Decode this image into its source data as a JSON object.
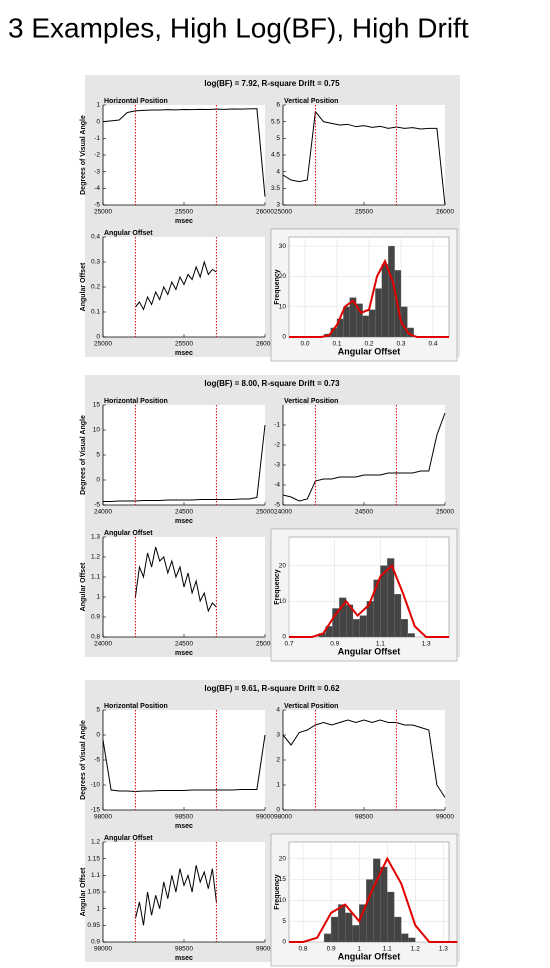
{
  "title": "3 Examples, High Log(BF), High Drift",
  "panels": [
    {
      "title": "log(BF) = 7.92, R-square Drift = 0.75",
      "chart_data": [
        {
          "type": "line",
          "title": "Horizontal Position",
          "ylabel": "Degrees of Visual Angle",
          "xlabel": "msec",
          "color": "#000000",
          "xlim": [
            25000,
            26000
          ],
          "xticks": [
            25000,
            25500,
            26000
          ],
          "ylim": [
            -5,
            1
          ],
          "yticks": [
            -5,
            -4,
            -3,
            -2,
            -1,
            0,
            1
          ],
          "markers": [
            25200,
            25700
          ],
          "marker_color": "#e00000",
          "x": [
            25000,
            25050,
            25100,
            25150,
            25200,
            25250,
            25300,
            25350,
            25400,
            25450,
            25500,
            25550,
            25600,
            25650,
            25700,
            25750,
            25800,
            25850,
            25900,
            25950,
            26000
          ],
          "values": [
            0.0,
            0.05,
            0.1,
            0.55,
            0.65,
            0.68,
            0.7,
            0.7,
            0.72,
            0.71,
            0.73,
            0.72,
            0.74,
            0.73,
            0.75,
            0.74,
            0.76,
            0.75,
            0.77,
            0.78,
            -4.5
          ]
        },
        {
          "type": "line",
          "title": "Vertical Position",
          "color": "#000000",
          "xlim": [
            25000,
            26000
          ],
          "xticks": [
            25000,
            25500,
            26000
          ],
          "ylim": [
            3,
            6
          ],
          "yticks": [
            3,
            3.5,
            4,
            4.5,
            5,
            5.5,
            6
          ],
          "markers": [
            25200,
            25700
          ],
          "marker_color": "#e00000",
          "x": [
            25000,
            25050,
            25100,
            25150,
            25200,
            25250,
            25300,
            25350,
            25400,
            25450,
            25500,
            25550,
            25600,
            25650,
            25700,
            25750,
            25800,
            25850,
            25900,
            25950,
            26000
          ],
          "values": [
            3.9,
            3.75,
            3.7,
            3.75,
            5.8,
            5.5,
            5.45,
            5.4,
            5.42,
            5.35,
            5.38,
            5.33,
            5.36,
            5.3,
            5.34,
            5.3,
            5.32,
            5.28,
            5.3,
            5.3,
            3.0
          ]
        },
        {
          "type": "line",
          "title": "Angular Offset",
          "ylabel": "Angular Offset",
          "xlabel": "msec",
          "color": "#000000",
          "xlim": [
            25000,
            26000
          ],
          "xticks": [
            25000,
            25500,
            26000
          ],
          "ylim": [
            0,
            0.4
          ],
          "yticks": [
            0,
            0.1,
            0.2,
            0.3,
            0.4
          ],
          "markers": [
            25200,
            25700
          ],
          "marker_color": "#e00000",
          "x": [
            25200,
            25225,
            25250,
            25275,
            25300,
            25325,
            25350,
            25375,
            25400,
            25425,
            25450,
            25475,
            25500,
            25525,
            25550,
            25575,
            25600,
            25625,
            25650,
            25675,
            25700
          ],
          "values": [
            0.12,
            0.14,
            0.11,
            0.16,
            0.13,
            0.18,
            0.15,
            0.2,
            0.17,
            0.22,
            0.19,
            0.24,
            0.21,
            0.25,
            0.23,
            0.28,
            0.24,
            0.3,
            0.25,
            0.27,
            0.26
          ]
        },
        {
          "type": "histogram",
          "ylabel": "Frequency",
          "xlabel": "Angular Offset",
          "color": "#444444",
          "fit_color": "#e00000",
          "xlim": [
            -0.05,
            0.45
          ],
          "xticks": [
            {
              "value": 0,
              "label": "0.0"
            },
            0.1,
            0.2,
            0.3,
            0.4
          ],
          "ylim": [
            0,
            33
          ],
          "yticks": [
            0,
            10,
            20,
            30
          ],
          "bins": [
            0.06,
            0.08,
            0.1,
            0.12,
            0.14,
            0.16,
            0.18,
            0.2,
            0.22,
            0.24,
            0.26,
            0.28,
            0.3,
            0.32,
            0.34
          ],
          "counts": [
            1,
            3,
            6,
            10,
            13,
            11,
            7,
            9,
            16,
            24,
            30,
            22,
            10,
            3
          ],
          "fit_x": [
            -0.05,
            -0.025,
            0,
            0.025,
            0.05,
            0.075,
            0.1,
            0.125,
            0.15,
            0.175,
            0.2,
            0.225,
            0.25,
            0.275,
            0.3,
            0.325,
            0.35,
            0.375,
            0.4,
            0.425,
            0.45
          ],
          "fit_values": [
            0,
            0,
            0,
            0,
            0,
            0.5,
            4,
            10,
            12,
            8,
            9,
            20,
            25,
            18,
            5,
            1,
            0,
            0,
            0,
            0,
            0
          ]
        }
      ]
    },
    {
      "title": "log(BF) = 8.00, R-square Drift = 0.73",
      "chart_data": [
        {
          "type": "line",
          "title": "Horizontal Position",
          "ylabel": "Degrees of Visual Angle",
          "xlabel": "msec",
          "color": "#000000",
          "xlim": [
            24000,
            25000
          ],
          "xticks": [
            24000,
            24500,
            25000
          ],
          "ylim": [
            -5,
            15
          ],
          "yticks": [
            -5,
            0,
            5,
            10,
            15
          ],
          "markers": [
            24200,
            24700
          ],
          "marker_color": "#e00000",
          "x": [
            24000,
            24050,
            24100,
            24150,
            24200,
            24250,
            24300,
            24350,
            24400,
            24450,
            24500,
            24550,
            24600,
            24650,
            24700,
            24750,
            24800,
            24850,
            24900,
            24950,
            25000
          ],
          "values": [
            -4.3,
            -4.3,
            -4.2,
            -4.2,
            -4.2,
            -4.1,
            -4.1,
            -4.1,
            -4.0,
            -4.0,
            -4.0,
            -4.0,
            -3.9,
            -3.9,
            -3.9,
            -3.9,
            -3.9,
            -3.8,
            -3.8,
            -3.5,
            11
          ]
        },
        {
          "type": "line",
          "title": "Vertical Position",
          "color": "#000000",
          "xlim": [
            24000,
            25000
          ],
          "xticks": [
            24000,
            24500,
            25000
          ],
          "ylim": [
            -5,
            0
          ],
          "yticks": [
            -5,
            -4,
            -3,
            -2,
            -1
          ],
          "markers": [
            24200,
            24700
          ],
          "marker_color": "#e00000",
          "x": [
            24000,
            24050,
            24100,
            24150,
            24200,
            24250,
            24300,
            24350,
            24400,
            24450,
            24500,
            24550,
            24600,
            24650,
            24700,
            24750,
            24800,
            24850,
            24900,
            24950,
            25000
          ],
          "values": [
            -4.5,
            -4.6,
            -4.8,
            -4.7,
            -3.8,
            -3.7,
            -3.7,
            -3.6,
            -3.6,
            -3.6,
            -3.5,
            -3.5,
            -3.5,
            -3.4,
            -3.4,
            -3.4,
            -3.4,
            -3.3,
            -3.3,
            -1.5,
            -0.4
          ]
        },
        {
          "type": "line",
          "title": "Angular Offset",
          "ylabel": "Angular Offset",
          "xlabel": "msec",
          "color": "#000000",
          "xlim": [
            24000,
            25000
          ],
          "xticks": [
            24000,
            24500,
            25000
          ],
          "ylim": [
            0.8,
            1.3
          ],
          "yticks": [
            0.8,
            0.9,
            1,
            1.1,
            1.2,
            1.3
          ],
          "markers": [
            24200,
            24700
          ],
          "marker_color": "#e00000",
          "x": [
            24200,
            24225,
            24250,
            24275,
            24300,
            24325,
            24350,
            24375,
            24400,
            24425,
            24450,
            24475,
            24500,
            24525,
            24550,
            24575,
            24600,
            24625,
            24650,
            24675,
            24700
          ],
          "values": [
            1.0,
            1.15,
            1.1,
            1.22,
            1.15,
            1.25,
            1.18,
            1.2,
            1.12,
            1.18,
            1.1,
            1.15,
            1.05,
            1.12,
            1.02,
            1.08,
            0.98,
            1.02,
            0.93,
            0.97,
            0.95
          ]
        },
        {
          "type": "histogram",
          "ylabel": "Frequency",
          "xlabel": "Angular Offset",
          "color": "#444444",
          "fit_color": "#e00000",
          "xlim": [
            0.7,
            1.4
          ],
          "xticks": [
            0.7,
            0.9,
            1.1,
            1.3
          ],
          "ylim": [
            0,
            28
          ],
          "yticks": [
            0,
            10,
            20
          ],
          "bins": [
            0.83,
            0.86,
            0.89,
            0.92,
            0.95,
            0.98,
            1.01,
            1.04,
            1.07,
            1.1,
            1.13,
            1.16,
            1.19,
            1.22,
            1.25
          ],
          "counts": [
            1,
            3,
            8,
            11,
            9,
            5,
            6,
            10,
            16,
            20,
            22,
            12,
            5,
            1
          ],
          "fit_x": [
            0.7,
            0.75,
            0.8,
            0.85,
            0.9,
            0.95,
            1.0,
            1.05,
            1.1,
            1.15,
            1.2,
            1.25,
            1.3,
            1.35,
            1.4
          ],
          "fit_values": [
            0,
            0,
            0,
            1,
            6,
            10,
            6,
            9,
            17,
            20,
            12,
            3,
            0,
            0,
            0
          ]
        }
      ]
    },
    {
      "title": "log(BF) = 9.61, R-square Drift = 0.62",
      "chart_data": [
        {
          "type": "line",
          "title": "Horizontal Position",
          "ylabel": "Degrees of Visual Angle",
          "xlabel": "msec",
          "color": "#000000",
          "xlim": [
            98000,
            99000
          ],
          "xticks": [
            98000,
            98500,
            99000
          ],
          "ylim": [
            -15,
            5
          ],
          "yticks": [
            -15,
            -10,
            -5,
            0,
            5
          ],
          "markers": [
            98200,
            98700
          ],
          "marker_color": "#e00000",
          "x": [
            98000,
            98050,
            98100,
            98150,
            98200,
            98250,
            98300,
            98350,
            98400,
            98450,
            98500,
            98550,
            98600,
            98650,
            98700,
            98750,
            98800,
            98850,
            98900,
            98950,
            99000
          ],
          "values": [
            -1,
            -11,
            -11.2,
            -11.2,
            -11.3,
            -11.2,
            -11.2,
            -11.1,
            -11.1,
            -11.1,
            -11.1,
            -11.0,
            -11.0,
            -11.0,
            -11.0,
            -11.0,
            -11.0,
            -10.9,
            -10.9,
            -10.9,
            0
          ]
        },
        {
          "type": "line",
          "title": "Vertical Position",
          "color": "#000000",
          "xlim": [
            98000,
            99000
          ],
          "xticks": [
            98000,
            98500,
            99000
          ],
          "ylim": [
            0,
            4
          ],
          "yticks": [
            0,
            1,
            2,
            3,
            4
          ],
          "markers": [
            98200,
            98700
          ],
          "marker_color": "#e00000",
          "x": [
            98000,
            98050,
            98100,
            98150,
            98200,
            98250,
            98300,
            98350,
            98400,
            98450,
            98500,
            98550,
            98600,
            98650,
            98700,
            98750,
            98800,
            98850,
            98900,
            98950,
            99000
          ],
          "values": [
            3.0,
            2.6,
            3.1,
            3.2,
            3.4,
            3.5,
            3.4,
            3.5,
            3.6,
            3.5,
            3.6,
            3.5,
            3.6,
            3.5,
            3.5,
            3.4,
            3.4,
            3.3,
            3.2,
            1.0,
            0.5
          ]
        },
        {
          "type": "line",
          "title": "Angular Offset",
          "ylabel": "Angular Offset",
          "xlabel": "msec",
          "color": "#000000",
          "xlim": [
            98000,
            99000
          ],
          "xticks": [
            98000,
            98500,
            99000
          ],
          "ylim": [
            0.9,
            1.2
          ],
          "yticks": [
            0.9,
            0.95,
            1,
            1.05,
            1.1,
            1.15,
            1.2
          ],
          "markers": [
            98200,
            98700
          ],
          "marker_color": "#e00000",
          "x": [
            98200,
            98225,
            98250,
            98275,
            98300,
            98325,
            98350,
            98375,
            98400,
            98425,
            98450,
            98475,
            98500,
            98525,
            98550,
            98575,
            98600,
            98625,
            98650,
            98675,
            98700
          ],
          "values": [
            0.97,
            1.02,
            0.95,
            1.05,
            0.98,
            1.04,
            1.0,
            1.08,
            1.03,
            1.1,
            1.05,
            1.12,
            1.07,
            1.1,
            1.05,
            1.13,
            1.08,
            1.11,
            1.06,
            1.12,
            1.02
          ]
        },
        {
          "type": "histogram",
          "ylabel": "Frequency",
          "xlabel": "Angular Offset",
          "color": "#444444",
          "fit_color": "#e00000",
          "xlim": [
            0.75,
            1.32
          ],
          "xticks": [
            0.8,
            0.9,
            1,
            1.1,
            1.2,
            1.3
          ],
          "ylim": [
            0,
            24
          ],
          "yticks": [
            0,
            5,
            10,
            15,
            20
          ],
          "bins": [
            0.875,
            0.9,
            0.925,
            0.95,
            0.975,
            1.0,
            1.025,
            1.05,
            1.075,
            1.1,
            1.125,
            1.15,
            1.175,
            1.2
          ],
          "counts": [
            2,
            6,
            9,
            7,
            4,
            9,
            15,
            20,
            18,
            12,
            6,
            2,
            1
          ],
          "fit_x": [
            0.75,
            0.8,
            0.85,
            0.9,
            0.95,
            1.0,
            1.05,
            1.1,
            1.15,
            1.2,
            1.25,
            1.3,
            1.35
          ],
          "fit_values": [
            0,
            0,
            1,
            7,
            9,
            5,
            13,
            20,
            14,
            4,
            0,
            0,
            0
          ]
        }
      ]
    }
  ]
}
